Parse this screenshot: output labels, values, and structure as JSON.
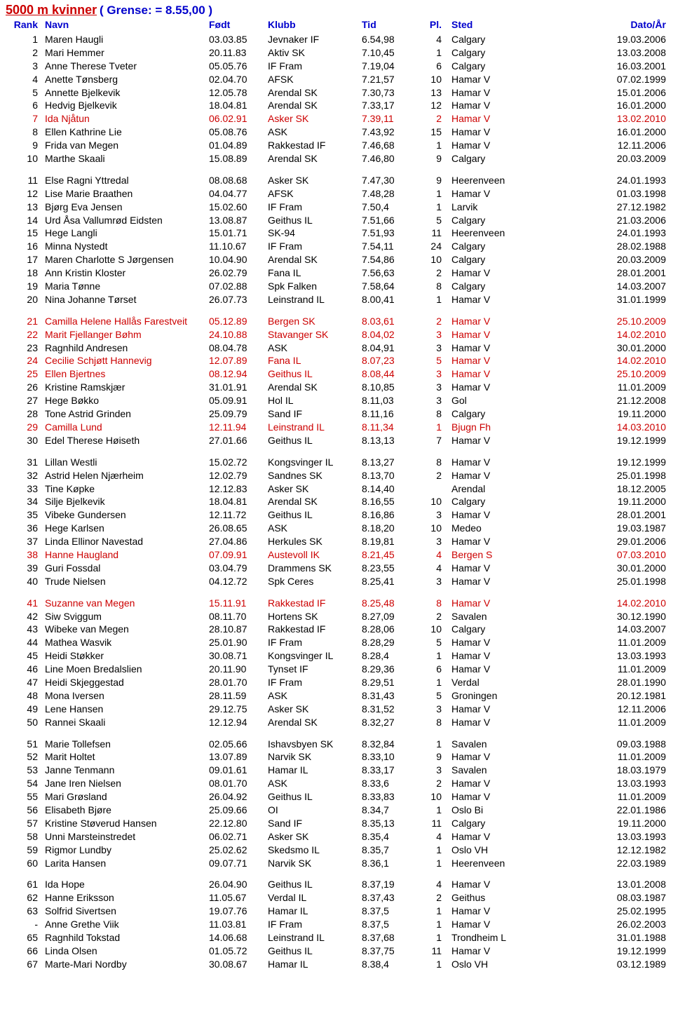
{
  "title": "5000 m kvinner",
  "limit": "( Grense: = 8.55,00 )",
  "headers": {
    "rank": "Rank",
    "navn": "Navn",
    "fodt": "Født",
    "klubb": "Klubb",
    "tid": "Tid",
    "pl": "Pl.",
    "sted": "Sted",
    "dato": "Dato/År"
  },
  "rows": [
    {
      "r": "1",
      "n": "Maren Haugli",
      "f": "03.03.85",
      "k": "Jevnaker IF",
      "t": "6.54,98",
      "p": "4",
      "s": "Calgary",
      "d": "19.03.2006"
    },
    {
      "r": "2",
      "n": "Mari Hemmer",
      "f": "20.11.83",
      "k": "Aktiv SK",
      "t": "7.10,45",
      "p": "1",
      "s": "Calgary",
      "d": "13.03.2008"
    },
    {
      "r": "3",
      "n": "Anne Therese Tveter",
      "f": "05.05.76",
      "k": "IF Fram",
      "t": "7.19,04",
      "p": "6",
      "s": "Calgary",
      "d": "16.03.2001"
    },
    {
      "r": "4",
      "n": "Anette Tønsberg",
      "f": "02.04.70",
      "k": "AFSK",
      "t": "7.21,57",
      "p": "10",
      "s": "Hamar V",
      "d": "07.02.1999"
    },
    {
      "r": "5",
      "n": "Annette Bjelkevik",
      "f": "12.05.78",
      "k": "Arendal SK",
      "t": "7.30,73",
      "p": "13",
      "s": "Hamar V",
      "d": "15.01.2006"
    },
    {
      "r": "6",
      "n": "Hedvig Bjelkevik",
      "f": "18.04.81",
      "k": "Arendal SK",
      "t": "7.33,17",
      "p": "12",
      "s": "Hamar V",
      "d": "16.01.2000"
    },
    {
      "r": "7",
      "n": "Ida Njåtun",
      "f": "06.02.91",
      "k": "Asker SK",
      "t": "7.39,11",
      "p": "2",
      "s": "Hamar V",
      "d": "13.02.2010",
      "hl": true
    },
    {
      "r": "8",
      "n": "Ellen Kathrine Lie",
      "f": "05.08.76",
      "k": "ASK",
      "t": "7.43,92",
      "p": "15",
      "s": "Hamar V",
      "d": "16.01.2000"
    },
    {
      "r": "9",
      "n": "Frida van Megen",
      "f": "01.04.89",
      "k": "Rakkestad IF",
      "t": "7.46,68",
      "p": "1",
      "s": "Hamar V",
      "d": "12.11.2006"
    },
    {
      "r": "10",
      "n": "Marthe Skaali",
      "f": "15.08.89",
      "k": "Arendal SK",
      "t": "7.46,80",
      "p": "9",
      "s": "Calgary",
      "d": "20.03.2009"
    },
    {
      "r": "11",
      "n": "Else Ragni Yttredal",
      "f": "08.08.68",
      "k": "Asker SK",
      "t": "7.47,30",
      "p": "9",
      "s": "Heerenveen",
      "d": "24.01.1993",
      "gap": true
    },
    {
      "r": "12",
      "n": "Lise Marie Braathen",
      "f": "04.04.77",
      "k": "AFSK",
      "t": "7.48,28",
      "p": "1",
      "s": "Hamar V",
      "d": "01.03.1998"
    },
    {
      "r": "13",
      "n": "Bjørg Eva Jensen",
      "f": "15.02.60",
      "k": "IF Fram",
      "t": "7.50,4",
      "p": "1",
      "s": "Larvik",
      "d": "27.12.1982"
    },
    {
      "r": "14",
      "n": "Urd Åsa Vallumrød Eidsten",
      "f": "13.08.87",
      "k": "Geithus IL",
      "t": "7.51,66",
      "p": "5",
      "s": "Calgary",
      "d": "21.03.2006"
    },
    {
      "r": "15",
      "n": "Hege Langli",
      "f": "15.01.71",
      "k": "SK-94",
      "t": "7.51,93",
      "p": "11",
      "s": "Heerenveen",
      "d": "24.01.1993"
    },
    {
      "r": "16",
      "n": "Minna Nystedt",
      "f": "11.10.67",
      "k": "IF Fram",
      "t": "7.54,11",
      "p": "24",
      "s": "Calgary",
      "d": "28.02.1988"
    },
    {
      "r": "17",
      "n": "Maren Charlotte S Jørgensen",
      "f": "10.04.90",
      "k": "Arendal SK",
      "t": "7.54,86",
      "p": "10",
      "s": "Calgary",
      "d": "20.03.2009"
    },
    {
      "r": "18",
      "n": "Ann Kristin Kloster",
      "f": "26.02.79",
      "k": "Fana IL",
      "t": "7.56,63",
      "p": "2",
      "s": "Hamar V",
      "d": "28.01.2001"
    },
    {
      "r": "19",
      "n": "Maria Tønne",
      "f": "07.02.88",
      "k": "Spk Falken",
      "t": "7.58,64",
      "p": "8",
      "s": "Calgary",
      "d": "14.03.2007"
    },
    {
      "r": "20",
      "n": "Nina Johanne Tørset",
      "f": "26.07.73",
      "k": "Leinstrand IL",
      "t": "8.00,41",
      "p": "1",
      "s": "Hamar V",
      "d": "31.01.1999"
    },
    {
      "r": "21",
      "n": "Camilla Helene Hallås Farestveit",
      "f": "05.12.89",
      "k": "Bergen SK",
      "t": "8.03,61",
      "p": "2",
      "s": "Hamar V",
      "d": "25.10.2009",
      "hl": true,
      "gap": true
    },
    {
      "r": "22",
      "n": "Marit Fjellanger Bøhm",
      "f": "24.10.88",
      "k": "Stavanger SK",
      "t": "8.04,02",
      "p": "3",
      "s": "Hamar V",
      "d": "14.02.2010",
      "hl": true
    },
    {
      "r": "23",
      "n": "Ragnhild Andresen",
      "f": "08.04.78",
      "k": "ASK",
      "t": "8.04,91",
      "p": "3",
      "s": "Hamar V",
      "d": "30.01.2000"
    },
    {
      "r": "24",
      "n": "Cecilie Schjøtt Hannevig",
      "f": "12.07.89",
      "k": "Fana IL",
      "t": "8.07,23",
      "p": "5",
      "s": "Hamar V",
      "d": "14.02.2010",
      "hl": true
    },
    {
      "r": "25",
      "n": "Ellen Bjertnes",
      "f": "08.12.94",
      "k": "Geithus IL",
      "t": "8.08,44",
      "p": "3",
      "s": "Hamar V",
      "d": "25.10.2009",
      "hl": true
    },
    {
      "r": "26",
      "n": "Kristine Ramskjær",
      "f": "31.01.91",
      "k": "Arendal SK",
      "t": "8.10,85",
      "p": "3",
      "s": "Hamar V",
      "d": "11.01.2009"
    },
    {
      "r": "27",
      "n": "Hege Bøkko",
      "f": "05.09.91",
      "k": "Hol IL",
      "t": "8.11,03",
      "p": "3",
      "s": "Gol",
      "d": "21.12.2008"
    },
    {
      "r": "28",
      "n": "Tone Astrid Grinden",
      "f": "25.09.79",
      "k": "Sand IF",
      "t": "8.11,16",
      "p": "8",
      "s": "Calgary",
      "d": "19.11.2000"
    },
    {
      "r": "29",
      "n": "Camilla Lund",
      "f": "12.11.94",
      "k": "Leinstrand IL",
      "t": "8.11,34",
      "p": "1",
      "s": "Bjugn Fh",
      "d": "14.03.2010",
      "hl": true
    },
    {
      "r": "30",
      "n": "Edel Therese Høiseth",
      "f": "27.01.66",
      "k": "Geithus IL",
      "t": "8.13,13",
      "p": "7",
      "s": "Hamar V",
      "d": "19.12.1999"
    },
    {
      "r": "31",
      "n": "Lillan Westli",
      "f": "15.02.72",
      "k": "Kongsvinger IL",
      "t": "8.13,27",
      "p": "8",
      "s": "Hamar V",
      "d": "19.12.1999",
      "gap": true
    },
    {
      "r": "32",
      "n": "Astrid Helen Njærheim",
      "f": "12.02.79",
      "k": "Sandnes SK",
      "t": "8.13,70",
      "p": "2",
      "s": "Hamar V",
      "d": "25.01.1998"
    },
    {
      "r": "33",
      "n": "Tine Køpke",
      "f": "12.12.83",
      "k": "Asker SK",
      "t": "8.14,40",
      "p": "",
      "s": "Arendal",
      "d": "18.12.2005"
    },
    {
      "r": "34",
      "n": "Silje Bjelkevik",
      "f": "18.04.81",
      "k": "Arendal SK",
      "t": "8.16,55",
      "p": "10",
      "s": "Calgary",
      "d": "19.11.2000"
    },
    {
      "r": "35",
      "n": "Vibeke Gundersen",
      "f": "12.11.72",
      "k": "Geithus IL",
      "t": "8.16,86",
      "p": "3",
      "s": "Hamar V",
      "d": "28.01.2001"
    },
    {
      "r": "36",
      "n": "Hege Karlsen",
      "f": "26.08.65",
      "k": "ASK",
      "t": "8.18,20",
      "p": "10",
      "s": "Medeo",
      "d": "19.03.1987"
    },
    {
      "r": "37",
      "n": "Linda Ellinor Navestad",
      "f": "27.04.86",
      "k": "Herkules SK",
      "t": "8.19,81",
      "p": "3",
      "s": "Hamar V",
      "d": "29.01.2006"
    },
    {
      "r": "38",
      "n": "Hanne Haugland",
      "f": "07.09.91",
      "k": "Austevoll IK",
      "t": "8.21,45",
      "p": "4",
      "s": "Bergen S",
      "d": "07.03.2010",
      "hl": true
    },
    {
      "r": "39",
      "n": "Guri Fossdal",
      "f": "03.04.79",
      "k": "Drammens SK",
      "t": "8.23,55",
      "p": "4",
      "s": "Hamar V",
      "d": "30.01.2000"
    },
    {
      "r": "40",
      "n": "Trude Nielsen",
      "f": "04.12.72",
      "k": "Spk Ceres",
      "t": "8.25,41",
      "p": "3",
      "s": "Hamar V",
      "d": "25.01.1998"
    },
    {
      "r": "41",
      "n": "Suzanne van Megen",
      "f": "15.11.91",
      "k": "Rakkestad IF",
      "t": "8.25,48",
      "p": "8",
      "s": "Hamar V",
      "d": "14.02.2010",
      "hl": true,
      "gap": true
    },
    {
      "r": "42",
      "n": "Siw Sviggum",
      "f": "08.11.70",
      "k": "Hortens SK",
      "t": "8.27,09",
      "p": "2",
      "s": "Savalen",
      "d": "30.12.1990"
    },
    {
      "r": "43",
      "n": "Wibeke van Megen",
      "f": "28.10.87",
      "k": "Rakkestad IF",
      "t": "8.28,06",
      "p": "10",
      "s": "Calgary",
      "d": "14.03.2007"
    },
    {
      "r": "44",
      "n": "Mathea Wasvik",
      "f": "25.01.90",
      "k": "IF Fram",
      "t": "8.28,29",
      "p": "5",
      "s": "Hamar V",
      "d": "11.01.2009"
    },
    {
      "r": "45",
      "n": "Heidi Støkker",
      "f": "30.08.71",
      "k": "Kongsvinger IL",
      "t": "8.28,4",
      "p": "1",
      "s": "Hamar V",
      "d": "13.03.1993"
    },
    {
      "r": "46",
      "n": "Line Moen Bredalslien",
      "f": "20.11.90",
      "k": "Tynset IF",
      "t": "8.29,36",
      "p": "6",
      "s": "Hamar V",
      "d": "11.01.2009"
    },
    {
      "r": "47",
      "n": "Heidi Skjeggestad",
      "f": "28.01.70",
      "k": "IF Fram",
      "t": "8.29,51",
      "p": "1",
      "s": "Verdal",
      "d": "28.01.1990"
    },
    {
      "r": "48",
      "n": "Mona Iversen",
      "f": "28.11.59",
      "k": "ASK",
      "t": "8.31,43",
      "p": "5",
      "s": "Groningen",
      "d": "20.12.1981"
    },
    {
      "r": "49",
      "n": "Lene Hansen",
      "f": "29.12.75",
      "k": "Asker SK",
      "t": "8.31,52",
      "p": "3",
      "s": "Hamar V",
      "d": "12.11.2006"
    },
    {
      "r": "50",
      "n": "Rannei Skaali",
      "f": "12.12.94",
      "k": "Arendal SK",
      "t": "8.32,27",
      "p": "8",
      "s": "Hamar V",
      "d": "11.01.2009"
    },
    {
      "r": "51",
      "n": "Marie Tollefsen",
      "f": "02.05.66",
      "k": "Ishavsbyen SK",
      "t": "8.32,84",
      "p": "1",
      "s": "Savalen",
      "d": "09.03.1988",
      "gap": true
    },
    {
      "r": "52",
      "n": "Marit Holtet",
      "f": "13.07.89",
      "k": "Narvik SK",
      "t": "8.33,10",
      "p": "9",
      "s": "Hamar V",
      "d": "11.01.2009"
    },
    {
      "r": "53",
      "n": "Janne Tenmann",
      "f": "09.01.61",
      "k": "Hamar IL",
      "t": "8.33,17",
      "p": "3",
      "s": "Savalen",
      "d": "18.03.1979"
    },
    {
      "r": "54",
      "n": "Jane Iren Nielsen",
      "f": "08.01.70",
      "k": "ASK",
      "t": "8.33,6",
      "p": "2",
      "s": "Hamar V",
      "d": "13.03.1993"
    },
    {
      "r": "55",
      "n": "Mari Grøsland",
      "f": "26.04.92",
      "k": "Geithus IL",
      "t": "8.33,83",
      "p": "10",
      "s": "Hamar V",
      "d": "11.01.2009"
    },
    {
      "r": "56",
      "n": "Elisabeth Bjøre",
      "f": "25.09.66",
      "k": "OI",
      "t": "8.34,7",
      "p": "1",
      "s": "Oslo Bi",
      "d": "22.01.1986"
    },
    {
      "r": "57",
      "n": "Kristine Støverud Hansen",
      "f": "22.12.80",
      "k": "Sand IF",
      "t": "8.35,13",
      "p": "11",
      "s": "Calgary",
      "d": "19.11.2000"
    },
    {
      "r": "58",
      "n": "Unni Marsteinstredet",
      "f": "06.02.71",
      "k": "Asker SK",
      "t": "8.35,4",
      "p": "4",
      "s": "Hamar V",
      "d": "13.03.1993"
    },
    {
      "r": "59",
      "n": "Rigmor Lundby",
      "f": "25.02.62",
      "k": "Skedsmo IL",
      "t": "8.35,7",
      "p": "1",
      "s": "Oslo VH",
      "d": "12.12.1982"
    },
    {
      "r": "60",
      "n": "Larita Hansen",
      "f": "09.07.71",
      "k": "Narvik SK",
      "t": "8.36,1",
      "p": "1",
      "s": "Heerenveen",
      "d": "22.03.1989"
    },
    {
      "r": "61",
      "n": "Ida Hope",
      "f": "26.04.90",
      "k": "Geithus IL",
      "t": "8.37,19",
      "p": "4",
      "s": "Hamar V",
      "d": "13.01.2008",
      "gap": true
    },
    {
      "r": "62",
      "n": "Hanne Eriksson",
      "f": "11.05.67",
      "k": "Verdal IL",
      "t": "8.37,43",
      "p": "2",
      "s": "Geithus",
      "d": "08.03.1987"
    },
    {
      "r": "63",
      "n": "Solfrid Sivertsen",
      "f": "19.07.76",
      "k": "Hamar IL",
      "t": "8.37,5",
      "p": "1",
      "s": "Hamar V",
      "d": "25.02.1995"
    },
    {
      "r": "-",
      "n": "Anne Grethe Viik",
      "f": "11.03.81",
      "k": "IF Fram",
      "t": "8.37,5",
      "p": "1",
      "s": "Hamar V",
      "d": "26.02.2003"
    },
    {
      "r": "65",
      "n": "Ragnhild Tokstad",
      "f": "14.06.68",
      "k": "Leinstrand IL",
      "t": "8.37,68",
      "p": "1",
      "s": "Trondheim L",
      "d": "31.01.1988"
    },
    {
      "r": "66",
      "n": "Linda Olsen",
      "f": "01.05.72",
      "k": "Geithus IL",
      "t": "8.37,75",
      "p": "11",
      "s": "Hamar V",
      "d": "19.12.1999"
    },
    {
      "r": "67",
      "n": "Marte-Mari Nordby",
      "f": "30.08.67",
      "k": "Hamar IL",
      "t": "8.38,4",
      "p": "1",
      "s": "Oslo VH",
      "d": "03.12.1989"
    }
  ]
}
